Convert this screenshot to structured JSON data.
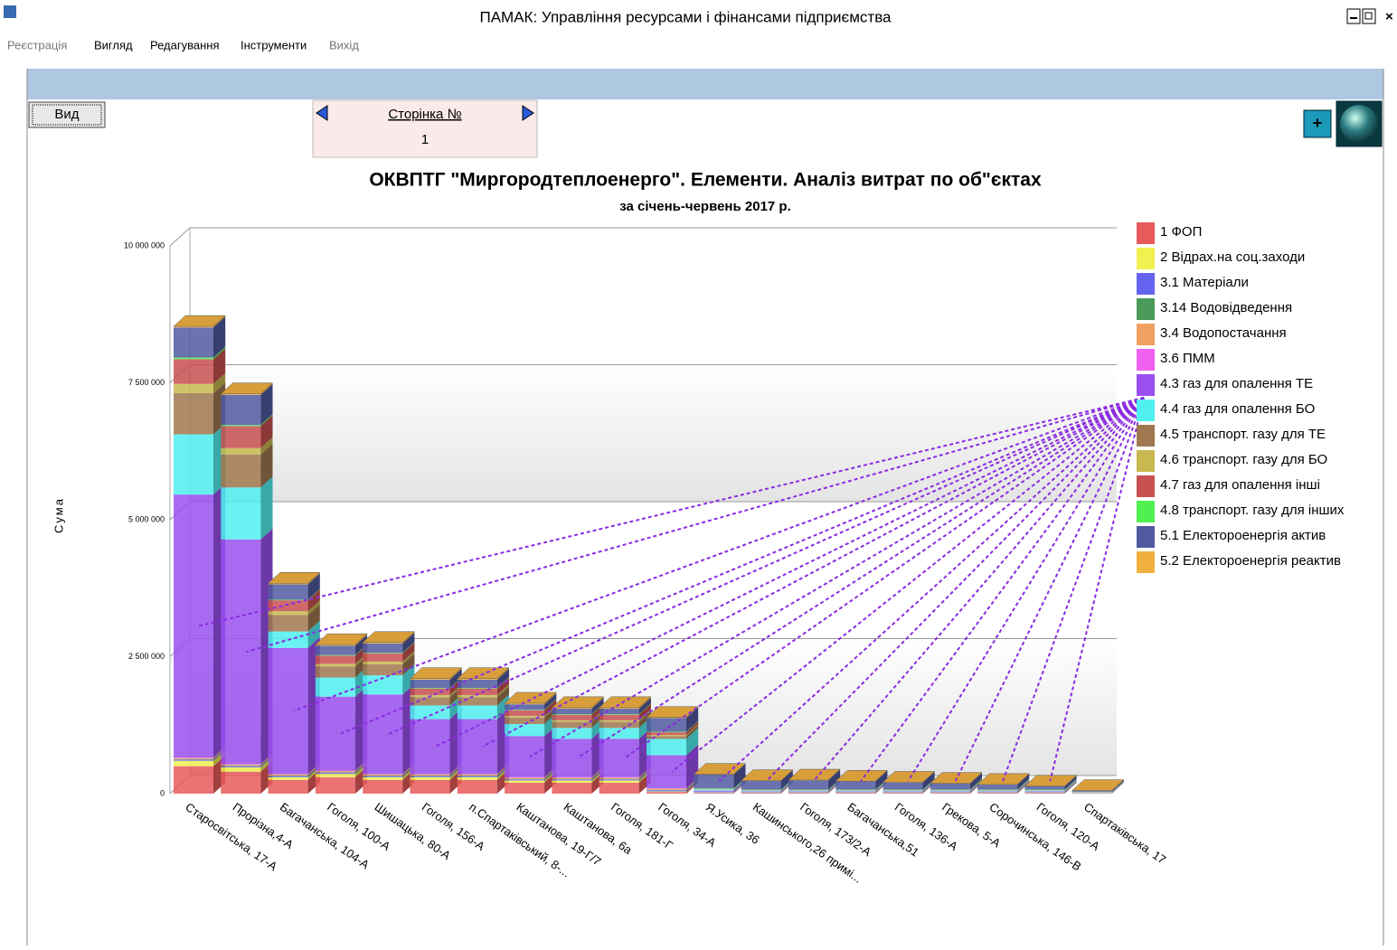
{
  "window": {
    "title": "ПАМАК: Управління ресурсами і фінансами підприємства"
  },
  "menu": [
    "Реєстрація",
    "Вигляд",
    "Редагування",
    "Інструменти",
    "Вихід"
  ],
  "toolbar": {
    "view_button": "Вид",
    "page_label": "Сторінка №",
    "page_number": 1
  },
  "chart_data": {
    "type": "bar3d-stacked",
    "title": "ОКВПТГ \"Миргородтеплоенерго\".  Елементи. Аналіз витрат по об\"єктах",
    "subtitle": "за січень-червень  2017 р.",
    "y_label": "Сума",
    "categories": [
      "Старосвітська, 17-А",
      "Прорізна,4-А",
      "Багачанська, 104-А",
      "Гоголя, 100-А",
      "Шишацька, 80-А",
      "Гоголя, 156-А",
      "п.Спартаківський, 8-...",
      "Каштанова, 19-Г/7",
      "Каштанова, 6а",
      "Гоголя, 181-Г",
      "Гоголя, 34-А",
      "Я.Усика, 36",
      "Кашинського,26 примі...",
      "Гоголя, 173/2-А",
      "Багачанська,51",
      "Гоголя, 136-А",
      "Грекова, 5-А",
      "Сорочинська, 146-В",
      "Гоголя, 120-А",
      "Спартаківська, 17"
    ],
    "ylim": [
      0,
      10000000
    ],
    "yticks": [
      {
        "value": 0,
        "label": "0"
      },
      {
        "value": 2500000,
        "label": "2 500 000"
      },
      {
        "value": 5000000,
        "label": "5 000 000"
      },
      {
        "value": 7500000,
        "label": "7 500 000"
      },
      {
        "value": 10000000,
        "label": "10 000 000"
      }
    ],
    "grid": true,
    "legend": "right",
    "series": [
      {
        "name": "1 ФОП",
        "color": "#e85a5a",
        "values": [
          500000,
          400000,
          250000,
          300000,
          250000,
          250000,
          250000,
          200000,
          200000,
          200000,
          30000,
          10000,
          10000,
          10000,
          10000,
          10000,
          10000,
          10000,
          10000,
          5000
        ]
      },
      {
        "name": "2 Відрах.на соц.заходи",
        "color": "#f0f050",
        "values": [
          100000,
          80000,
          50000,
          60000,
          50000,
          50000,
          50000,
          40000,
          40000,
          40000,
          10000,
          2000,
          2000,
          2000,
          2000,
          2000,
          2000,
          2000,
          2000,
          1000
        ]
      },
      {
        "name": "3.1 Матеріали",
        "color": "#6464f0",
        "values": [
          20000,
          20000,
          20000,
          20000,
          20000,
          20000,
          20000,
          20000,
          20000,
          20000,
          20000,
          10000,
          10000,
          10000,
          10000,
          10000,
          10000,
          10000,
          10000,
          5000
        ]
      },
      {
        "name": "3.14 Водовідведення",
        "color": "#4a9a5a",
        "values": [
          10000,
          10000,
          10000,
          10000,
          10000,
          10000,
          10000,
          10000,
          10000,
          10000,
          10000,
          5000,
          5000,
          5000,
          5000,
          5000,
          5000,
          5000,
          5000,
          2000
        ]
      },
      {
        "name": "3.4 Водопостачання",
        "color": "#f0a060",
        "values": [
          20000,
          20000,
          20000,
          20000,
          20000,
          20000,
          20000,
          20000,
          20000,
          20000,
          20000,
          5000,
          5000,
          5000,
          5000,
          5000,
          5000,
          5000,
          5000,
          2000
        ]
      },
      {
        "name": "3.6 ПММ",
        "color": "#f060f0",
        "values": [
          10000,
          10000,
          10000,
          10000,
          10000,
          10000,
          10000,
          10000,
          10000,
          10000,
          10000,
          2000,
          2000,
          2000,
          2000,
          2000,
          2000,
          2000,
          2000,
          1000
        ]
      },
      {
        "name": "4.3 газ для опалення ТЕ",
        "color": "#9a50f0",
        "values": [
          4800000,
          4100000,
          2300000,
          1350000,
          1450000,
          1000000,
          1000000,
          750000,
          700000,
          700000,
          600000,
          20000,
          10000,
          10000,
          10000,
          10000,
          10000,
          10000,
          10000,
          5000
        ]
      },
      {
        "name": "4.4 газ для опалення БО",
        "color": "#50f0f0",
        "values": [
          1100000,
          950000,
          300000,
          350000,
          350000,
          250000,
          250000,
          220000,
          200000,
          200000,
          300000,
          20000,
          10000,
          10000,
          10000,
          10000,
          10000,
          10000,
          10000,
          5000
        ]
      },
      {
        "name": "4.5 транспорт. газу для ТЕ",
        "color": "#a07850",
        "values": [
          750000,
          600000,
          300000,
          200000,
          200000,
          150000,
          150000,
          120000,
          110000,
          110000,
          50000,
          5000,
          3000,
          3000,
          3000,
          3000,
          3000,
          3000,
          3000,
          1000
        ]
      },
      {
        "name": "4.6 транспорт. газу для БО",
        "color": "#c8b850",
        "values": [
          170000,
          120000,
          70000,
          50000,
          50000,
          40000,
          40000,
          30000,
          30000,
          30000,
          20000,
          2000,
          2000,
          2000,
          2000,
          2000,
          2000,
          2000,
          2000,
          1000
        ]
      },
      {
        "name": "4.7 газ для опалення інші",
        "color": "#c85050",
        "values": [
          450000,
          400000,
          200000,
          150000,
          150000,
          120000,
          120000,
          100000,
          100000,
          100000,
          50000,
          5000,
          3000,
          3000,
          3000,
          3000,
          3000,
          3000,
          3000,
          1000
        ]
      },
      {
        "name": "4.8 транспорт. газу для інших",
        "color": "#50f050",
        "values": [
          30000,
          20000,
          10000,
          10000,
          10000,
          10000,
          10000,
          10000,
          10000,
          10000,
          10000,
          10000,
          10000,
          10000,
          10000,
          10000,
          10000,
          10000,
          10000,
          5000
        ]
      },
      {
        "name": "5.1 Електороенергія актив",
        "color": "#505aa0",
        "values": [
          550000,
          550000,
          280000,
          170000,
          170000,
          150000,
          150000,
          100000,
          100000,
          100000,
          250000,
          250000,
          160000,
          170000,
          150000,
          130000,
          110000,
          90000,
          60000,
          20000
        ]
      },
      {
        "name": "5.2 Електороенергія реактив",
        "color": "#f0b040",
        "values": [
          20000,
          20000,
          20000,
          20000,
          20000,
          20000,
          20000,
          20000,
          20000,
          20000,
          10000,
          5000,
          5000,
          5000,
          5000,
          5000,
          5000,
          5000,
          5000,
          2000
        ]
      }
    ]
  }
}
